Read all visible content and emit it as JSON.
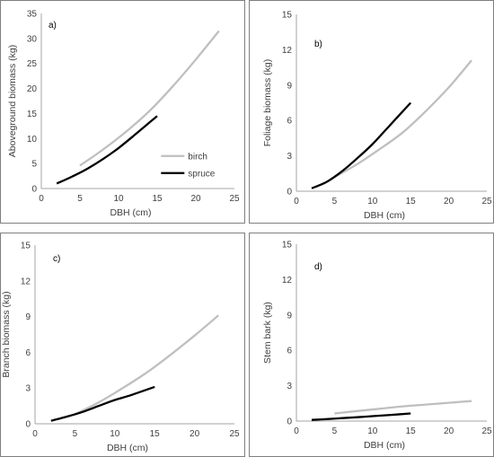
{
  "colors": {
    "birch": "#bfbfbf",
    "spruce": "#000000"
  },
  "chart_data": [
    {
      "type": "line",
      "panel_label": "a)",
      "xlabel": "DBH (cm)",
      "ylabel": "Aboveground biomass (kg)",
      "xlim": [
        0,
        25
      ],
      "ylim": [
        0,
        35
      ],
      "xticks": [
        "0",
        "5",
        "10",
        "15",
        "20",
        "25"
      ],
      "yticks": [
        "0",
        "5",
        "10",
        "15",
        "20",
        "25",
        "30",
        "35"
      ],
      "legend": {
        "position": "lower-right",
        "entries": [
          "birch",
          "spruce"
        ]
      },
      "series": [
        {
          "name": "birch",
          "x": [
            5,
            8,
            11,
            14,
            17,
            20,
            23
          ],
          "y": [
            4.6,
            7.8,
            11.4,
            15.5,
            20.4,
            25.8,
            31.5
          ]
        },
        {
          "name": "spruce",
          "x": [
            2,
            4,
            6,
            8,
            10,
            12,
            15
          ],
          "y": [
            1.0,
            2.4,
            4.0,
            5.9,
            8.1,
            10.6,
            14.5
          ]
        }
      ]
    },
    {
      "type": "line",
      "panel_label": "b)",
      "xlabel": "DBH (cm)",
      "ylabel": "Foliage biomass (kg)",
      "xlim": [
        0,
        25
      ],
      "ylim": [
        0,
        15
      ],
      "xticks": [
        "0",
        "5",
        "10",
        "15",
        "20",
        "25"
      ],
      "yticks": [
        "0",
        "3",
        "6",
        "9",
        "12",
        "15"
      ],
      "series": [
        {
          "name": "birch",
          "x": [
            5,
            8,
            11,
            14,
            17,
            20,
            23
          ],
          "y": [
            1.2,
            2.3,
            3.6,
            5.0,
            6.8,
            8.8,
            11.1
          ]
        },
        {
          "name": "spruce",
          "x": [
            2,
            4,
            6,
            8,
            10,
            12,
            15
          ],
          "y": [
            0.25,
            0.8,
            1.7,
            2.8,
            4.0,
            5.4,
            7.5
          ]
        }
      ]
    },
    {
      "type": "line",
      "panel_label": "c)",
      "xlabel": "DBH (cm)",
      "ylabel": "Branch biomass (kg)",
      "xlim": [
        0,
        25
      ],
      "ylim": [
        0,
        15
      ],
      "xticks": [
        "0",
        "5",
        "10",
        "15",
        "20",
        "25"
      ],
      "yticks": [
        "0",
        "3",
        "6",
        "9",
        "12",
        "15"
      ],
      "series": [
        {
          "name": "birch",
          "x": [
            5,
            8,
            11,
            14,
            17,
            20,
            23
          ],
          "y": [
            0.8,
            1.8,
            3.0,
            4.3,
            5.8,
            7.4,
            9.1
          ]
        },
        {
          "name": "spruce",
          "x": [
            2,
            4,
            6,
            8,
            10,
            12,
            15
          ],
          "y": [
            0.25,
            0.6,
            1.0,
            1.5,
            2.0,
            2.4,
            3.1
          ]
        }
      ]
    },
    {
      "type": "line",
      "panel_label": "d)",
      "xlabel": "DBH (cm)",
      "ylabel": "Stem bark (kg)",
      "xlim": [
        0,
        25
      ],
      "ylim": [
        0,
        15
      ],
      "xticks": [
        "0",
        "5",
        "10",
        "15",
        "20",
        "25"
      ],
      "yticks": [
        "0",
        "3",
        "6",
        "9",
        "12",
        "15"
      ],
      "series": [
        {
          "name": "birch",
          "x": [
            5,
            8,
            11,
            14,
            17,
            20,
            23
          ],
          "y": [
            0.65,
            0.85,
            1.05,
            1.25,
            1.4,
            1.55,
            1.7
          ]
        },
        {
          "name": "spruce",
          "x": [
            2,
            4,
            6,
            8,
            10,
            12,
            15
          ],
          "y": [
            0.1,
            0.17,
            0.25,
            0.33,
            0.42,
            0.5,
            0.65
          ]
        }
      ]
    }
  ]
}
